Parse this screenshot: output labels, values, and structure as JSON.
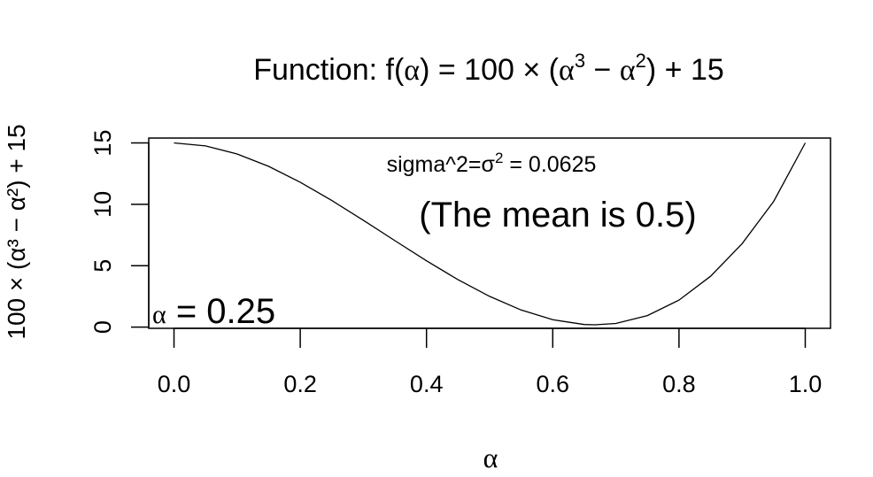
{
  "chart_data": {
    "type": "line",
    "title": {
      "prefix": "Function: f(",
      "var": "α",
      "mid": ") = 100 × (",
      "cube": "3",
      "minus": " − ",
      "sq": "2",
      "suffix": ") + 15"
    },
    "xlabel": "α",
    "ylabel": "100 × (α³ − α²) + 15",
    "xlim": [
      -0.04,
      1.04
    ],
    "ylim": [
      -0.1,
      15.4
    ],
    "x_ticks": [
      0.0,
      0.2,
      0.4,
      0.6,
      0.8,
      1.0
    ],
    "x_tick_labels": [
      "0.0",
      "0.2",
      "0.4",
      "0.6",
      "0.8",
      "1.0"
    ],
    "y_ticks": [
      0,
      5,
      10,
      15
    ],
    "y_tick_labels": [
      "0",
      "5",
      "10",
      "15"
    ],
    "series": [
      {
        "x": [
          0.0,
          0.05,
          0.1,
          0.15,
          0.2,
          0.25,
          0.3,
          0.35,
          0.4,
          0.45,
          0.5,
          0.55,
          0.6,
          0.65,
          0.667,
          0.7,
          0.75,
          0.8,
          0.85,
          0.9,
          0.95,
          1.0
        ],
        "y": [
          15.0,
          14.76,
          14.1,
          13.09,
          11.8,
          10.31,
          8.7,
          7.04,
          5.4,
          3.86,
          2.5,
          1.39,
          0.6,
          0.21,
          0.19,
          0.3,
          0.94,
          2.2,
          4.14,
          6.8,
          10.24,
          15.0
        ],
        "color": "#000000"
      }
    ],
    "annotations": {
      "sigma": {
        "text_prefix": "sigma^2=σ",
        "sup": "2",
        "text_suffix": " = 0.0625"
      },
      "mean": "(The mean is 0.5)",
      "alpha_value": {
        "symbol": "α",
        "value": " = 0.25"
      }
    },
    "grid": false
  }
}
